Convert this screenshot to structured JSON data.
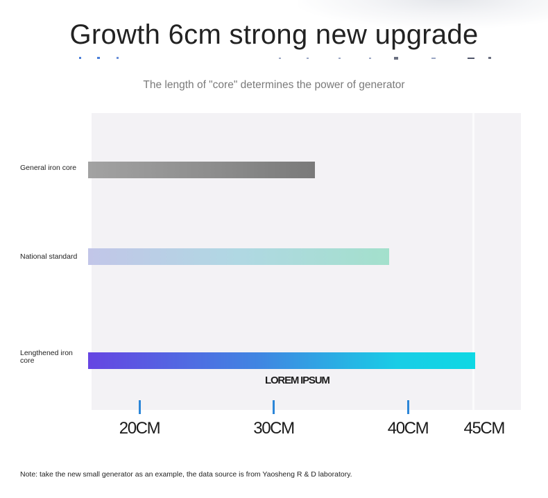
{
  "title": "Growth 6cm strong new upgrade",
  "subtitle": "The length of \"core\" determines the power of generator",
  "note": "Note: take the new small generator as an example, the data source is from Yaosheng R & D laboratory.",
  "colors": {
    "tick_accent": "#2c86d8",
    "plot_background": "#f3f2f5",
    "general_bar": "#8d8d8d",
    "national_bar": "#b0d8e3",
    "lengthened_bar_start": "#6645e2",
    "lengthened_bar_end": "#0ed8e4"
  },
  "chart_data": {
    "type": "bar",
    "orientation": "horizontal",
    "categories": [
      "General iron core",
      "National standard",
      "Lengthened iron core"
    ],
    "values": [
      33.1,
      38.6,
      45
    ],
    "unit": "CM",
    "xticks": [
      "20CM",
      "30CM",
      "40CM",
      "45CM"
    ],
    "xtick_values": [
      20,
      30,
      40,
      45
    ],
    "annotation": "LOREM IPSUM",
    "title": "",
    "xlabel": "",
    "ylabel": "",
    "grid": false,
    "legend": "none"
  }
}
